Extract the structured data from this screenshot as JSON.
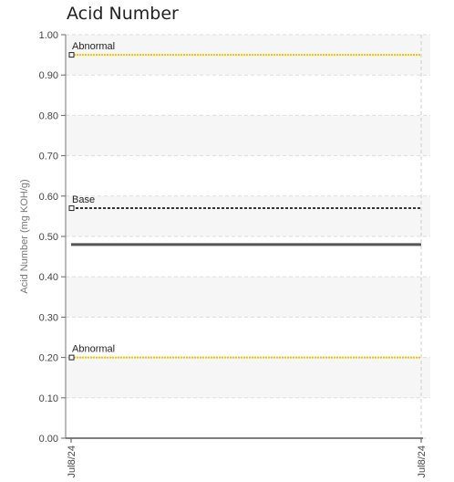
{
  "chart_data": {
    "type": "line",
    "title": "Acid Number",
    "ylabel": "Acid Number (mg KOH/g)",
    "xlabel": "",
    "ylim": [
      0,
      1.0
    ],
    "yticks": [
      "0.00",
      "0.10",
      "0.20",
      "0.30",
      "0.40",
      "0.50",
      "0.60",
      "0.70",
      "0.80",
      "0.90",
      "1.00"
    ],
    "x_tick_labels": [
      "Jul8/24",
      "Jul8/24"
    ],
    "grid": true,
    "reference_lines": [
      {
        "label": "Abnormal",
        "value": 0.95,
        "style": "dotted",
        "color": "#f2c200"
      },
      {
        "label": "Base",
        "value": 0.57,
        "style": "dashed",
        "color": "#333333"
      },
      {
        "label": "Abnormal",
        "value": 0.2,
        "style": "dotted",
        "color": "#f2c200"
      }
    ],
    "series": [
      {
        "points": [
          {
            "x": "Jul8/24",
            "y": 0.48
          },
          {
            "x": "Jul8/24",
            "y": 0.48
          }
        ],
        "color": "#555555"
      }
    ]
  }
}
